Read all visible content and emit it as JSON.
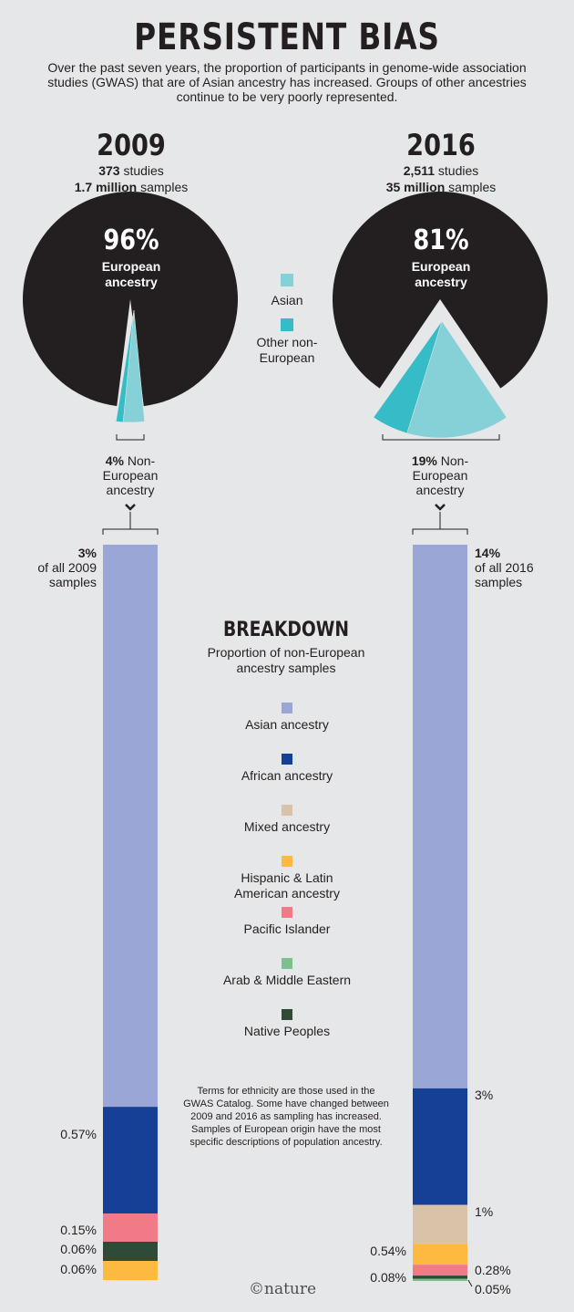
{
  "title": "PERSISTENT BIAS",
  "subtitle": "Over the past seven years, the proportion of participants in genome-wide association studies (GWAS) that are of Asian ancestry has increased. Groups of other ancestries continue to be very poorly represented.",
  "colors": {
    "background": "#e6e7e8",
    "european": "#231f20",
    "pie_asian": "#86d0d8",
    "pie_other": "#35bcc6",
    "asian": "#9aa6d5",
    "african": "#163f96",
    "mixed": "#d8c3a8",
    "hispanic": "#fdb940",
    "pacific": "#f07a86",
    "arab": "#7cc08e",
    "native": "#2f4a37"
  },
  "pie_legend": [
    {
      "label": "Asian",
      "color_key": "pie_asian"
    },
    {
      "label": "Other non-European",
      "color_key": "pie_other"
    }
  ],
  "years": [
    {
      "year": "2009",
      "studies_num": "373",
      "studies_word": "studies",
      "samples_num": "1.7 million",
      "samples_word": "samples",
      "pie_pct": "96%",
      "pie_label": "European ancestry",
      "non_eu_pct": "4%",
      "non_eu_label": "Non-European ancestry",
      "bar_top_pct": "3%",
      "bar_top_label": "of all 2009 samples"
    },
    {
      "year": "2016",
      "studies_num": "2,511",
      "studies_word": "studies",
      "samples_num": "35 million",
      "samples_word": "samples",
      "pie_pct": "81%",
      "pie_label": "European ancestry",
      "non_eu_pct": "19%",
      "non_eu_label": "Non-European ancestry",
      "bar_top_pct": "14%",
      "bar_top_label": "of all 2016 samples"
    }
  ],
  "breakdown": {
    "title": "BREAKDOWN",
    "subtitle": "Proportion of non-European ancestry samples",
    "legend": [
      {
        "label": "Asian ancestry",
        "color_key": "asian"
      },
      {
        "label": "African ancestry",
        "color_key": "african"
      },
      {
        "label": "Mixed ancestry",
        "color_key": "mixed"
      },
      {
        "label": "Hispanic & Latin American ancestry",
        "color_key": "hispanic"
      },
      {
        "label": "Pacific Islander",
        "color_key": "pacific"
      },
      {
        "label": "Arab & Middle Eastern",
        "color_key": "arab"
      },
      {
        "label": "Native Peoples",
        "color_key": "native"
      }
    ],
    "note": "Terms for ethnicity are those used in the GWAS Catalog. Some have changed between 2009 and 2016 as sampling has increased. Samples of European origin have the most specific descriptions of population ancestry."
  },
  "logo": "©nature",
  "chart_data": [
    {
      "type": "pie",
      "title": "2009",
      "slices": [
        {
          "name": "European ancestry",
          "value": 96
        },
        {
          "name": "Asian",
          "value": 3
        },
        {
          "name": "Other non-European",
          "value": 1
        }
      ]
    },
    {
      "type": "pie",
      "title": "2016",
      "slices": [
        {
          "name": "European ancestry",
          "value": 81
        },
        {
          "name": "Asian",
          "value": 14
        },
        {
          "name": "Other non-European",
          "value": 5
        }
      ]
    },
    {
      "type": "bar",
      "title": "2009",
      "stacked": true,
      "series": [
        {
          "name": "Asian ancestry",
          "value": 3
        },
        {
          "name": "African ancestry",
          "value": 0.57,
          "label": "0.57%"
        },
        {
          "name": "Pacific Islander",
          "value": 0.15,
          "label": "0.15%"
        },
        {
          "name": "Native Peoples",
          "value": 0.06,
          "label": "0.06%"
        },
        {
          "name": "Hispanic & Latin American ancestry",
          "value": 0.06,
          "label": "0.06%"
        }
      ]
    },
    {
      "type": "bar",
      "title": "2016",
      "stacked": true,
      "series": [
        {
          "name": "Asian ancestry",
          "value": 14
        },
        {
          "name": "African ancestry",
          "value": 3,
          "label": "3%"
        },
        {
          "name": "Mixed ancestry",
          "value": 1,
          "label": "1%"
        },
        {
          "name": "Hispanic & Latin American ancestry",
          "value": 0.54,
          "label": "0.54%"
        },
        {
          "name": "Pacific Islander",
          "value": 0.28,
          "label": "0.28%"
        },
        {
          "name": "Native Peoples",
          "value": 0.08,
          "label": "0.08%"
        },
        {
          "name": "Arab & Middle Eastern",
          "value": 0.05,
          "label": "0.05%"
        }
      ]
    }
  ]
}
